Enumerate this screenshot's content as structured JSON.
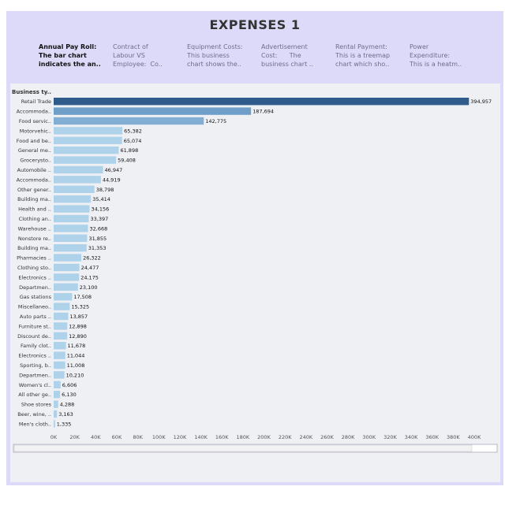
{
  "dashboard": {
    "title": "EXPENSES 1",
    "tabs": [
      {
        "label": "Annual Pay Roll:\nThe bar chart\nindicates the an..",
        "active": true
      },
      {
        "label": "Contract of\nLabour VS\nEmployee:  Co..",
        "active": false
      },
      {
        "label": "Equipment Costs:\nThis business\nchart shows the..",
        "active": false
      },
      {
        "label": "Advertisement\nCost:      The\nbusiness chart ..",
        "active": false
      },
      {
        "label": "Rental Payment:\nThis is a treemap\nchart which sho..",
        "active": false
      },
      {
        "label": "Power\nExpenditure:\nThis is a heatm..",
        "active": false
      }
    ]
  },
  "chart_data": {
    "type": "bar",
    "orientation": "horizontal",
    "category_header": "Business ty..",
    "categories": [
      "Retail Trade",
      "Accommoda..",
      "Food servic..",
      "Motorvehic..",
      "Food and be..",
      "General me..",
      "Grocerysto..",
      "Automobile ..",
      "Accommoda..",
      "Other gener..",
      "Building ma..",
      "Health and ..",
      "Clothing an..",
      "Warehouse ..",
      "Nonstore re..",
      "Building ma..",
      "Pharmacies ..",
      "Clothing sto..",
      "Electronics ..",
      "Departmen..",
      "Gas stations",
      "Miscellaneo..",
      "Auto parts ..",
      "Furniture st..",
      "Discount de..",
      "Family clot..",
      "Electronics ..",
      "Sporting, b..",
      "Departmen..",
      "Women's cl..",
      "All other ge..",
      "Shoe stores",
      "Beer, wine, ..",
      "Men's cloth.."
    ],
    "values": [
      394957,
      187694,
      142775,
      65382,
      65074,
      61898,
      59408,
      46947,
      44919,
      38798,
      35414,
      34156,
      33397,
      32668,
      31855,
      31353,
      26322,
      24477,
      24175,
      23100,
      17508,
      15325,
      13857,
      12898,
      12890,
      11678,
      11044,
      11008,
      10210,
      6606,
      6130,
      4288,
      3163,
      1335
    ],
    "value_labels": [
      "394,957",
      "187,694",
      "142,775",
      "65,382",
      "65,074",
      "61,898",
      "59,408",
      "46,947",
      "44,919",
      "38,798",
      "35,414",
      "34,156",
      "33,397",
      "32,668",
      "31,855",
      "31,353",
      "26,322",
      "24,477",
      "24,175",
      "23,100",
      "17,508",
      "15,325",
      "13,857",
      "12,898",
      "12,890",
      "11,678",
      "11,044",
      "11,008",
      "10,210",
      "6,606",
      "6,130",
      "4,288",
      "3,163",
      "1,335"
    ],
    "xlim": [
      0,
      400000
    ],
    "x_ticks": [
      "0K",
      "20K",
      "40K",
      "60K",
      "80K",
      "100K",
      "120K",
      "140K",
      "160K",
      "180K",
      "200K",
      "220K",
      "240K",
      "260K",
      "280K",
      "300K",
      "320K",
      "340K",
      "360K",
      "380K",
      "400K"
    ],
    "colors": {
      "highest": "#2e5b8a",
      "second": "#6f9fc9",
      "third": "#82aed4",
      "default": "#aed2ea"
    },
    "grid": false,
    "legend": "none"
  }
}
